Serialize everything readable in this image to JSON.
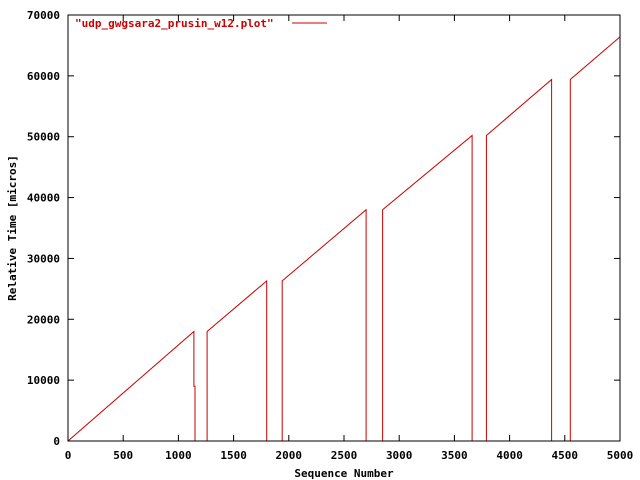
{
  "colors": {
    "series": "#cc0000",
    "axis": "#000000",
    "background": "#ffffff"
  },
  "chart_data": {
    "type": "line",
    "title": "",
    "xlabel": "Sequence Number",
    "ylabel": "Relative Time [micros]",
    "xlim": [
      0,
      5000
    ],
    "ylim": [
      0,
      70000
    ],
    "x_ticks": [
      0,
      500,
      1000,
      1500,
      2000,
      2500,
      3000,
      3500,
      4000,
      4500,
      5000
    ],
    "y_ticks": [
      0,
      10000,
      20000,
      30000,
      40000,
      50000,
      60000,
      70000
    ],
    "grid": false,
    "legend_position": "top-left",
    "series": [
      {
        "name": "\"udp_gwgsara2_prusin_w12.plot\"",
        "x": [
          0,
          1140,
          1140,
          1150,
          1150,
          1260,
          1260,
          1800,
          1800,
          1940,
          1940,
          2700,
          2700,
          2850,
          2850,
          3660,
          3660,
          3790,
          3790,
          4380,
          4380,
          4550,
          4550,
          5000
        ],
        "y": [
          0,
          18000,
          9000,
          9000,
          0,
          0,
          18000,
          26300,
          0,
          0,
          26300,
          38000,
          0,
          0,
          38000,
          50200,
          0,
          0,
          50200,
          59400,
          0,
          0,
          59400,
          66400
        ]
      }
    ]
  }
}
